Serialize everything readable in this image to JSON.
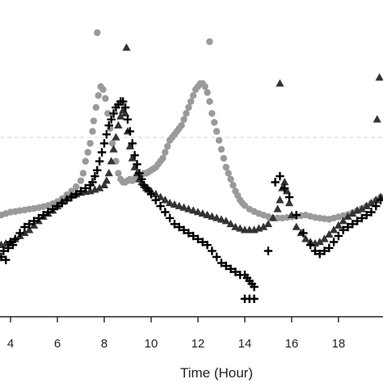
{
  "chart_data": {
    "type": "scatter",
    "xlabel": "Time (Hour)",
    "ylabel": "",
    "xlim": [
      3.55,
      19.9
    ],
    "ylim": [
      0,
      1
    ],
    "x_ticks": [
      4,
      6,
      8,
      10,
      12,
      14,
      16,
      18
    ],
    "x_tick_labels": [
      "4",
      "6",
      "8",
      "10",
      "12",
      "14",
      "16",
      "18"
    ],
    "grid": false,
    "reference_line": {
      "y": 0.6,
      "style": "dashed",
      "color": "#d0d0d0"
    },
    "series": [
      {
        "marker": "circle",
        "color": "#9a9a9a",
        "x": [
          3.6,
          3.8,
          4.0,
          4.2,
          4.4,
          4.6,
          4.8,
          5.0,
          5.2,
          5.4,
          5.6,
          5.8,
          6.0,
          6.2,
          6.4,
          6.6,
          6.8,
          7.0,
          7.1,
          7.2,
          7.3,
          7.4,
          7.5,
          7.55,
          7.65,
          7.75,
          7.85,
          7.95,
          8.05,
          8.15,
          8.25,
          8.35,
          8.5,
          8.6,
          8.7,
          8.8,
          8.9,
          9.0,
          9.1,
          9.2,
          9.3,
          9.4,
          9.5,
          9.6,
          9.7,
          9.8,
          9.9,
          10.0,
          10.1,
          10.2,
          10.3,
          10.4,
          10.5,
          10.6,
          10.7,
          10.8,
          10.9,
          11.0,
          11.1,
          11.2,
          11.3,
          11.4,
          11.5,
          11.6,
          11.7,
          11.8,
          11.9,
          12.0,
          12.1,
          12.2,
          12.3,
          12.4,
          12.5,
          12.6,
          12.7,
          12.8,
          12.9,
          13.0,
          13.1,
          13.2,
          13.3,
          13.4,
          13.5,
          13.6,
          13.7,
          13.8,
          13.9,
          14.0,
          14.2,
          14.4,
          14.6,
          14.8,
          15.0,
          15.2,
          15.4,
          15.6,
          15.8,
          16.0,
          16.2,
          16.4,
          16.6,
          16.8,
          17.0,
          17.2,
          17.4,
          17.6,
          17.8,
          18.0,
          18.2,
          18.4,
          18.6,
          18.8,
          19.0,
          19.2,
          19.4,
          19.6,
          19.8,
          7.7,
          12.5
        ],
        "y": [
          0.34,
          0.345,
          0.35,
          0.352,
          0.355,
          0.357,
          0.36,
          0.362,
          0.365,
          0.368,
          0.372,
          0.378,
          0.385,
          0.395,
          0.408,
          0.42,
          0.435,
          0.455,
          0.48,
          0.52,
          0.55,
          0.58,
          0.62,
          0.655,
          0.7,
          0.74,
          0.77,
          0.76,
          0.73,
          0.68,
          0.63,
          0.58,
          0.52,
          0.48,
          0.46,
          0.45,
          0.45,
          0.455,
          0.46,
          0.455,
          0.46,
          0.465,
          0.47,
          0.475,
          0.48,
          0.48,
          0.485,
          0.49,
          0.495,
          0.5,
          0.51,
          0.52,
          0.53,
          0.55,
          0.57,
          0.59,
          0.6,
          0.61,
          0.62,
          0.63,
          0.64,
          0.66,
          0.68,
          0.7,
          0.72,
          0.74,
          0.76,
          0.77,
          0.78,
          0.78,
          0.77,
          0.75,
          0.72,
          0.68,
          0.65,
          0.62,
          0.59,
          0.56,
          0.53,
          0.5,
          0.48,
          0.46,
          0.44,
          0.42,
          0.405,
          0.39,
          0.38,
          0.372,
          0.36,
          0.352,
          0.345,
          0.34,
          0.335,
          0.33,
          0.33,
          0.33,
          0.332,
          0.334,
          0.336,
          0.338,
          0.34,
          0.336,
          0.332,
          0.33,
          0.328,
          0.326,
          0.33,
          0.334,
          0.338,
          0.342,
          0.348,
          0.355,
          0.362,
          0.37,
          0.38,
          0.39,
          0.4,
          0.95,
          0.92
        ]
      },
      {
        "marker": "triangle",
        "color": "#333333",
        "x": [
          3.6,
          3.8,
          4.0,
          4.2,
          4.4,
          4.6,
          4.8,
          5.0,
          5.2,
          5.4,
          5.6,
          5.8,
          6.0,
          6.2,
          6.4,
          6.6,
          6.8,
          7.0,
          7.2,
          7.4,
          7.6,
          7.8,
          8.0,
          8.1,
          8.2,
          8.3,
          8.4,
          8.5,
          8.6,
          8.7,
          8.8,
          8.9,
          9.0,
          9.1,
          9.2,
          9.3,
          9.4,
          9.5,
          9.6,
          9.7,
          9.8,
          9.9,
          10.0,
          10.2,
          10.4,
          10.6,
          10.8,
          11.0,
          11.2,
          11.4,
          11.6,
          11.8,
          12.0,
          12.2,
          12.4,
          12.6,
          12.8,
          13.0,
          13.2,
          13.4,
          13.6,
          13.8,
          14.0,
          14.2,
          14.4,
          14.6,
          14.8,
          15.0,
          15.2,
          15.4,
          15.5,
          15.6,
          15.7,
          15.8,
          15.9,
          16.0,
          16.2,
          16.4,
          16.6,
          16.8,
          17.0,
          17.2,
          17.4,
          17.6,
          17.8,
          18.0,
          18.2,
          18.4,
          18.6,
          18.8,
          19.0,
          19.2,
          19.4,
          19.6,
          19.8,
          8.95,
          15.5,
          19.75,
          19.65
        ],
        "y": [
          0.24,
          0.245,
          0.25,
          0.26,
          0.27,
          0.28,
          0.29,
          0.305,
          0.32,
          0.335,
          0.345,
          0.355,
          0.37,
          0.385,
          0.395,
          0.405,
          0.41,
          0.415,
          0.418,
          0.42,
          0.425,
          0.43,
          0.44,
          0.455,
          0.48,
          0.52,
          0.56,
          0.6,
          0.64,
          0.67,
          0.69,
          0.68,
          0.62,
          0.57,
          0.53,
          0.5,
          0.48,
          0.46,
          0.45,
          0.44,
          0.43,
          0.425,
          0.42,
          0.41,
          0.4,
          0.39,
          0.38,
          0.375,
          0.37,
          0.365,
          0.36,
          0.355,
          0.35,
          0.345,
          0.34,
          0.335,
          0.33,
          0.325,
          0.32,
          0.31,
          0.3,
          0.295,
          0.29,
          0.29,
          0.29,
          0.295,
          0.3,
          0.31,
          0.33,
          0.36,
          0.39,
          0.43,
          0.45,
          0.42,
          0.38,
          0.34,
          0.3,
          0.28,
          0.26,
          0.25,
          0.245,
          0.25,
          0.26,
          0.275,
          0.29,
          0.305,
          0.32,
          0.335,
          0.345,
          0.355,
          0.36,
          0.37,
          0.38,
          0.39,
          0.4,
          0.9,
          0.78,
          0.8,
          0.66
        ]
      },
      {
        "marker": "plus",
        "color": "#000000",
        "x": [
          3.6,
          3.7,
          3.8,
          3.9,
          4.0,
          4.1,
          4.2,
          4.4,
          4.6,
          4.8,
          5.0,
          5.2,
          5.4,
          5.6,
          5.8,
          6.0,
          6.2,
          6.4,
          6.6,
          6.8,
          7.0,
          7.2,
          7.4,
          7.5,
          7.6,
          7.7,
          7.8,
          7.9,
          8.0,
          8.1,
          8.2,
          8.3,
          8.4,
          8.5,
          8.6,
          8.7,
          8.8,
          8.9,
          9.0,
          9.1,
          9.2,
          9.3,
          9.4,
          9.5,
          9.6,
          9.7,
          9.8,
          9.9,
          10.0,
          10.2,
          10.4,
          10.6,
          10.8,
          11.0,
          11.2,
          11.4,
          11.6,
          11.8,
          12.0,
          12.2,
          12.4,
          12.6,
          12.8,
          13.0,
          13.2,
          13.4,
          13.6,
          13.8,
          14.0,
          14.1,
          14.2,
          14.3,
          14.4,
          15.0,
          15.3,
          15.5,
          15.7,
          15.9,
          16.2,
          16.5,
          16.8,
          17.0,
          17.2,
          17.4,
          17.6,
          17.8,
          18.0,
          18.2,
          18.4,
          18.6,
          18.8,
          19.0,
          19.2,
          19.4,
          19.6,
          19.8,
          14.0,
          14.2,
          14.4
        ],
        "y": [
          0.2,
          0.22,
          0.19,
          0.23,
          0.25,
          0.24,
          0.26,
          0.28,
          0.3,
          0.31,
          0.32,
          0.33,
          0.34,
          0.35,
          0.36,
          0.37,
          0.38,
          0.39,
          0.4,
          0.41,
          0.42,
          0.43,
          0.44,
          0.45,
          0.47,
          0.49,
          0.52,
          0.55,
          0.58,
          0.61,
          0.64,
          0.66,
          0.68,
          0.7,
          0.71,
          0.72,
          0.72,
          0.7,
          0.66,
          0.62,
          0.58,
          0.54,
          0.51,
          0.48,
          0.46,
          0.44,
          0.43,
          0.42,
          0.41,
          0.39,
          0.37,
          0.35,
          0.33,
          0.31,
          0.3,
          0.29,
          0.28,
          0.27,
          0.26,
          0.25,
          0.24,
          0.22,
          0.2,
          0.18,
          0.17,
          0.16,
          0.15,
          0.14,
          0.14,
          0.13,
          0.12,
          0.11,
          0.1,
          0.22,
          0.45,
          0.47,
          0.43,
          0.4,
          0.34,
          0.28,
          0.24,
          0.22,
          0.21,
          0.22,
          0.23,
          0.25,
          0.27,
          0.29,
          0.3,
          0.31,
          0.32,
          0.33,
          0.34,
          0.35,
          0.37,
          0.39,
          0.06,
          0.06,
          0.06
        ]
      }
    ]
  }
}
